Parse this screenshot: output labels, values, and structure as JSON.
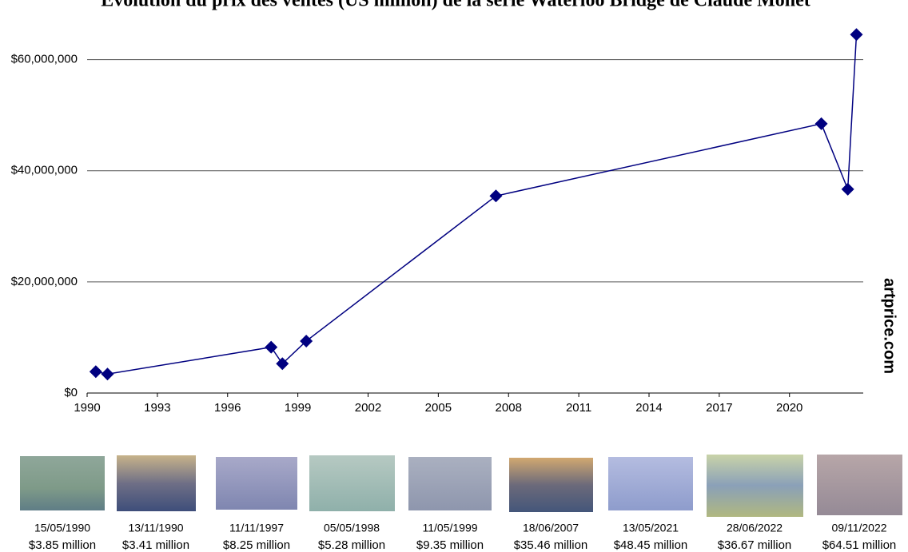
{
  "chart_data": {
    "type": "line",
    "title": "Évolution du prix des ventes (US million) de la série Waterloo Bridge de Claude Monet",
    "watermark": "artprice.com",
    "x": [
      1990.37,
      1990.87,
      1997.86,
      1998.34,
      1999.36,
      2007.46,
      2021.36,
      2022.49,
      2022.86
    ],
    "xlim": [
      1990,
      2023.15
    ],
    "xticks": [
      1990,
      1993,
      1996,
      1999,
      2002,
      2005,
      2008,
      2011,
      2014,
      2017,
      2020
    ],
    "ylim": [
      0,
      70000000
    ],
    "yticks": [
      {
        "value": 0,
        "label": "$0"
      },
      {
        "value": 20000000,
        "label": "$20,000,000"
      },
      {
        "value": 40000000,
        "label": "$40,000,000"
      },
      {
        "value": 60000000,
        "label": "$60,000,000"
      }
    ],
    "grid": true,
    "series": [
      {
        "color": "#000080",
        "values": [
          3850000,
          3410000,
          8250000,
          5280000,
          9350000,
          35460000,
          48450000,
          36670000,
          64510000
        ]
      }
    ],
    "dates": [
      "15/05/1990",
      "13/11/1990",
      "11/11/1997",
      "05/05/1998",
      "11/05/1999",
      "18/06/2007",
      "13/05/2021",
      "28/06/2022",
      "09/11/2022"
    ],
    "value_labels": [
      "$3.85 million",
      "$3.41 million",
      "$8.25 million",
      "$5.28 million",
      "$9.35 million",
      "$35.46 million",
      "$48.45 million",
      "$36.67 million",
      "$64.51 million"
    ]
  }
}
